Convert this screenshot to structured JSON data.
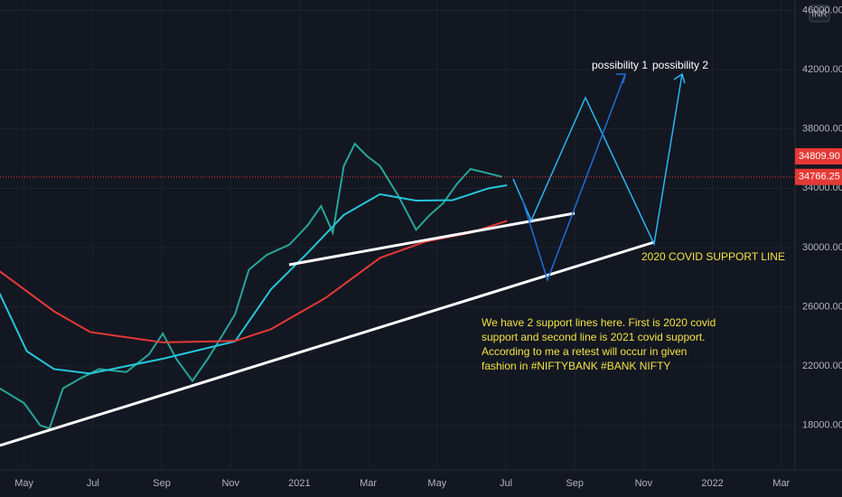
{
  "chart_data": {
    "type": "line",
    "currency": "INR",
    "xlim": [
      -0.7,
      22.4
    ],
    "xticks": [
      {
        "value": 0,
        "label": "May"
      },
      {
        "value": 2,
        "label": "Jul"
      },
      {
        "value": 4,
        "label": "Sep"
      },
      {
        "value": 6,
        "label": "Nov"
      },
      {
        "value": 8,
        "label": "2021"
      },
      {
        "value": 10,
        "label": "Mar"
      },
      {
        "value": 12,
        "label": "May"
      },
      {
        "value": 14,
        "label": "Jul"
      },
      {
        "value": 16,
        "label": "Sep"
      },
      {
        "value": 18,
        "label": "Nov"
      },
      {
        "value": 20,
        "label": "2022"
      },
      {
        "value": 22,
        "label": "Mar"
      }
    ],
    "ylim": [
      15000,
      46700
    ],
    "yticks": [
      {
        "value": 18000,
        "label": "18000.00"
      },
      {
        "value": 22000,
        "label": "22000.00"
      },
      {
        "value": 26000,
        "label": "26000.00"
      },
      {
        "value": 30000,
        "label": "30000.00"
      },
      {
        "value": 34000,
        "label": "34000.00"
      },
      {
        "value": 38000,
        "label": "38000.00"
      },
      {
        "value": 42000,
        "label": "42000.00"
      },
      {
        "value": 46000,
        "label": "46000.00"
      }
    ],
    "grid": true,
    "series": [
      {
        "color": "#26a69a",
        "x": [
          -0.71,
          0,
          0.47,
          0.74,
          1.13,
          1.66,
          2.18,
          2.97,
          3.63,
          4.03,
          4.42,
          4.89,
          5.34,
          5.74,
          6.13,
          6.53,
          7.05,
          7.71,
          8.24,
          8.63,
          8.97,
          9.29,
          9.61,
          9.95,
          10.34,
          10.87,
          11.39,
          11.79,
          12.18,
          12.58,
          12.97,
          13.5,
          13.89
        ],
        "values": [
          20500,
          19500,
          18000,
          17800,
          20500,
          21200,
          21800,
          21600,
          22800,
          24200,
          22500,
          21000,
          22500,
          24000,
          25500,
          28500,
          29500,
          30200,
          31500,
          32800,
          31000,
          35500,
          37000,
          36200,
          35500,
          33500,
          31200,
          32200,
          33000,
          34300,
          35300,
          35000,
          34766.25
        ]
      },
      {
        "color": "#26c6da",
        "x": [
          -0.71,
          0.08,
          0.87,
          1.92,
          4.03,
          6.13,
          7.18,
          8.24,
          9.29,
          10.34,
          11.39,
          12.45,
          13.5,
          14.03
        ],
        "values": [
          26900,
          23000,
          21800,
          21500,
          22500,
          23670,
          27200,
          29640,
          32200,
          33600,
          33170,
          33200,
          34000,
          34200
        ]
      },
      {
        "color": "#e53935",
        "x": [
          -0.71,
          0.87,
          1.92,
          4.03,
          6.13,
          7.18,
          8.76,
          10.34,
          11.66,
          12.97,
          14.03
        ],
        "values": [
          28400,
          25700,
          24300,
          23600,
          23700,
          24500,
          26600,
          29300,
          30400,
          31000,
          31800
        ]
      }
    ],
    "price_labels": [
      {
        "value": 34809.9,
        "label": "34809.90"
      },
      {
        "value": 34766.25,
        "label": "34766.25"
      }
    ],
    "annotations": {
      "possibility_1": "possibility 1",
      "possibility_2": "possibility 2",
      "support_line": "2020 COVID SUPPORT LINE",
      "note": [
        "We have 2 support lines here. First is 2020 covid",
        "support and second line is 2021 covid support.",
        "According to me a retest will occur in given",
        "fashion in #NIFTYBANK #BANK NIFTY"
      ]
    }
  }
}
